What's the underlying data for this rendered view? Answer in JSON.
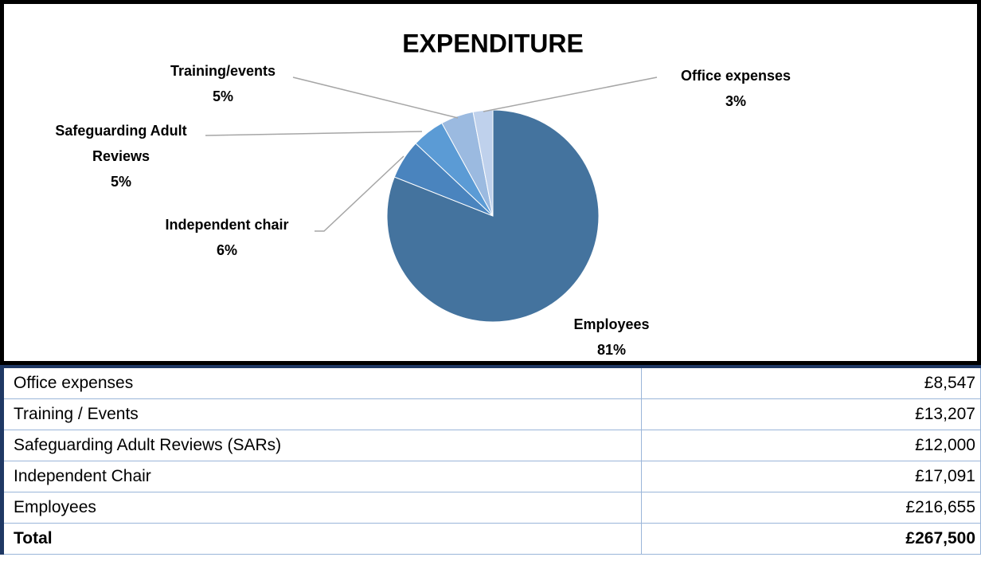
{
  "chart_data": {
    "type": "pie",
    "title": "EXPENDITURE",
    "categories": [
      "Employees",
      "Independent chair",
      "Safeguarding Adult Reviews",
      "Training/events",
      "Office expenses"
    ],
    "values": [
      81,
      6,
      5,
      5,
      3
    ],
    "value_labels": [
      "81%",
      "6%",
      "5%",
      "5%",
      "3%"
    ],
    "colors": [
      "#44739e",
      "#4a84be",
      "#5b9bd5",
      "#9bbae0",
      "#bfd1ec"
    ]
  },
  "table": {
    "rows": [
      [
        "Office expenses",
        "£8,547"
      ],
      [
        "Training / Events",
        "£13,207"
      ],
      [
        "Safeguarding Adult Reviews (SARs)",
        "£12,000"
      ],
      [
        "Independent Chair",
        "£17,091"
      ],
      [
        "Employees",
        "£216,655"
      ]
    ],
    "total": [
      "Total",
      "£267,500"
    ]
  }
}
